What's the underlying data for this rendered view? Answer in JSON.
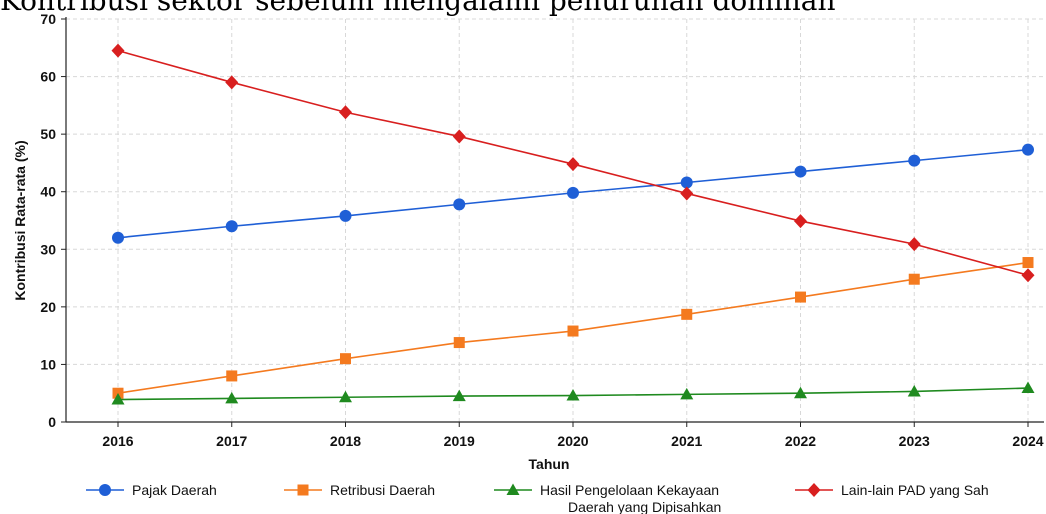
{
  "heading_fragment": "Kontribusi sektor ... (partially cut off above frame)",
  "chart_data": {
    "type": "line",
    "x": [
      2016,
      2017,
      2018,
      2019,
      2020,
      2021,
      2022,
      2023,
      2024
    ],
    "xlabel": "Tahun",
    "ylabel": "Kontribusi Rata-rata (%)",
    "ylim": [
      0,
      70
    ],
    "yticks": [
      0,
      10,
      20,
      30,
      40,
      50,
      60,
      70
    ],
    "grid": true,
    "legend_position": "bottom",
    "series": [
      {
        "name": "Pajak Daerah",
        "color": "#1f5fd6",
        "marker": "circle",
        "values": [
          32,
          34,
          35.8,
          37.8,
          39.8,
          41.6,
          43.5,
          45.4,
          47.3
        ]
      },
      {
        "name": "Retribusi Daerah",
        "color": "#f47a1f",
        "marker": "square",
        "values": [
          5,
          8,
          11,
          13.8,
          15.8,
          18.7,
          21.7,
          24.8,
          27.7
        ]
      },
      {
        "name": "Hasil Pengelolaan Kekayaan Daerah yang Dipisahkan",
        "name_lines": [
          "Hasil Pengelolaan Kekayaan",
          "Daerah yang Dipisahkan"
        ],
        "color": "#1f8a1f",
        "marker": "triangle",
        "values": [
          3.9,
          4.1,
          4.3,
          4.5,
          4.6,
          4.8,
          5.0,
          5.3,
          5.9
        ]
      },
      {
        "name": "Lain-lain PAD yang Sah",
        "color": "#d81f1f",
        "marker": "diamond",
        "values": [
          64.5,
          59,
          53.8,
          49.6,
          44.8,
          39.7,
          34.9,
          30.9,
          25.5
        ]
      }
    ]
  }
}
